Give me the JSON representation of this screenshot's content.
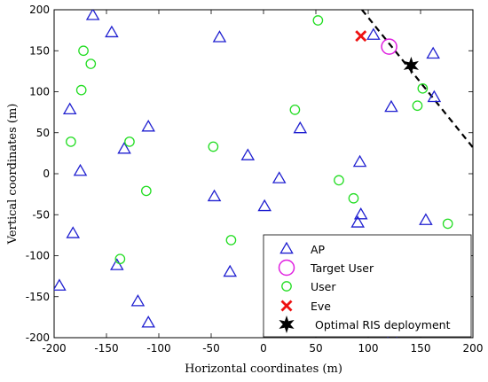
{
  "chart_data": {
    "type": "scatter",
    "title": "",
    "xlabel": "Horizontal coordinates (m)",
    "ylabel": "Vertical coordinates (m)",
    "xlim": [
      -200,
      200
    ],
    "ylim": [
      -200,
      200
    ],
    "xticks": [
      -200,
      -150,
      -100,
      -50,
      0,
      50,
      100,
      150,
      200
    ],
    "yticks": [
      -200,
      -150,
      -100,
      -50,
      0,
      50,
      100,
      150,
      200
    ],
    "grid": false,
    "legend_position": "bottom-right",
    "series": [
      {
        "name": "AP",
        "marker": "triangle",
        "color": "#1f1fd0",
        "points": [
          [
            -163,
            193
          ],
          [
            -145,
            172
          ],
          [
            -42,
            166
          ],
          [
            -185,
            78
          ],
          [
            -110,
            57
          ],
          [
            -133,
            30
          ],
          [
            -175,
            3
          ],
          [
            -182,
            -73
          ],
          [
            -140,
            -112
          ],
          [
            -195,
            -137
          ],
          [
            -120,
            -156
          ],
          [
            -110,
            -182
          ],
          [
            -47,
            -28
          ],
          [
            -32,
            -120
          ],
          [
            -15,
            22
          ],
          [
            1,
            -40
          ],
          [
            15,
            -6
          ],
          [
            35,
            55
          ],
          [
            90,
            -60
          ],
          [
            93,
            -50
          ],
          [
            92,
            14
          ],
          [
            122,
            81
          ],
          [
            155,
            -57
          ],
          [
            163,
            93
          ],
          [
            162,
            146
          ],
          [
            105,
            169
          ],
          [
            123,
            -198
          ]
        ]
      },
      {
        "name": "Target User",
        "marker": "circle-large",
        "color": "#e020e0",
        "points": [
          [
            120,
            155
          ]
        ]
      },
      {
        "name": "User",
        "marker": "circle",
        "color": "#22dd22",
        "points": [
          [
            -172,
            150
          ],
          [
            -165,
            134
          ],
          [
            -174,
            102
          ],
          [
            -184,
            39
          ],
          [
            -128,
            39
          ],
          [
            -112,
            -21
          ],
          [
            -137,
            -104
          ],
          [
            -31,
            -81
          ],
          [
            -48,
            33
          ],
          [
            30,
            78
          ],
          [
            52,
            187
          ],
          [
            72,
            -8
          ],
          [
            86,
            -30
          ],
          [
            147,
            83
          ],
          [
            152,
            104
          ],
          [
            176,
            -61
          ]
        ]
      },
      {
        "name": "Eve",
        "marker": "x",
        "color": "#ee1111",
        "points": [
          [
            93,
            168
          ]
        ]
      },
      {
        "name": "Optimal RIS deployment",
        "marker": "star",
        "color": "#000000",
        "points": [
          [
            141,
            132
          ]
        ]
      }
    ],
    "line": {
      "style": "dashed",
      "color": "#000000",
      "points": [
        [
          94,
          200
        ],
        [
          200,
          32
        ]
      ]
    }
  }
}
